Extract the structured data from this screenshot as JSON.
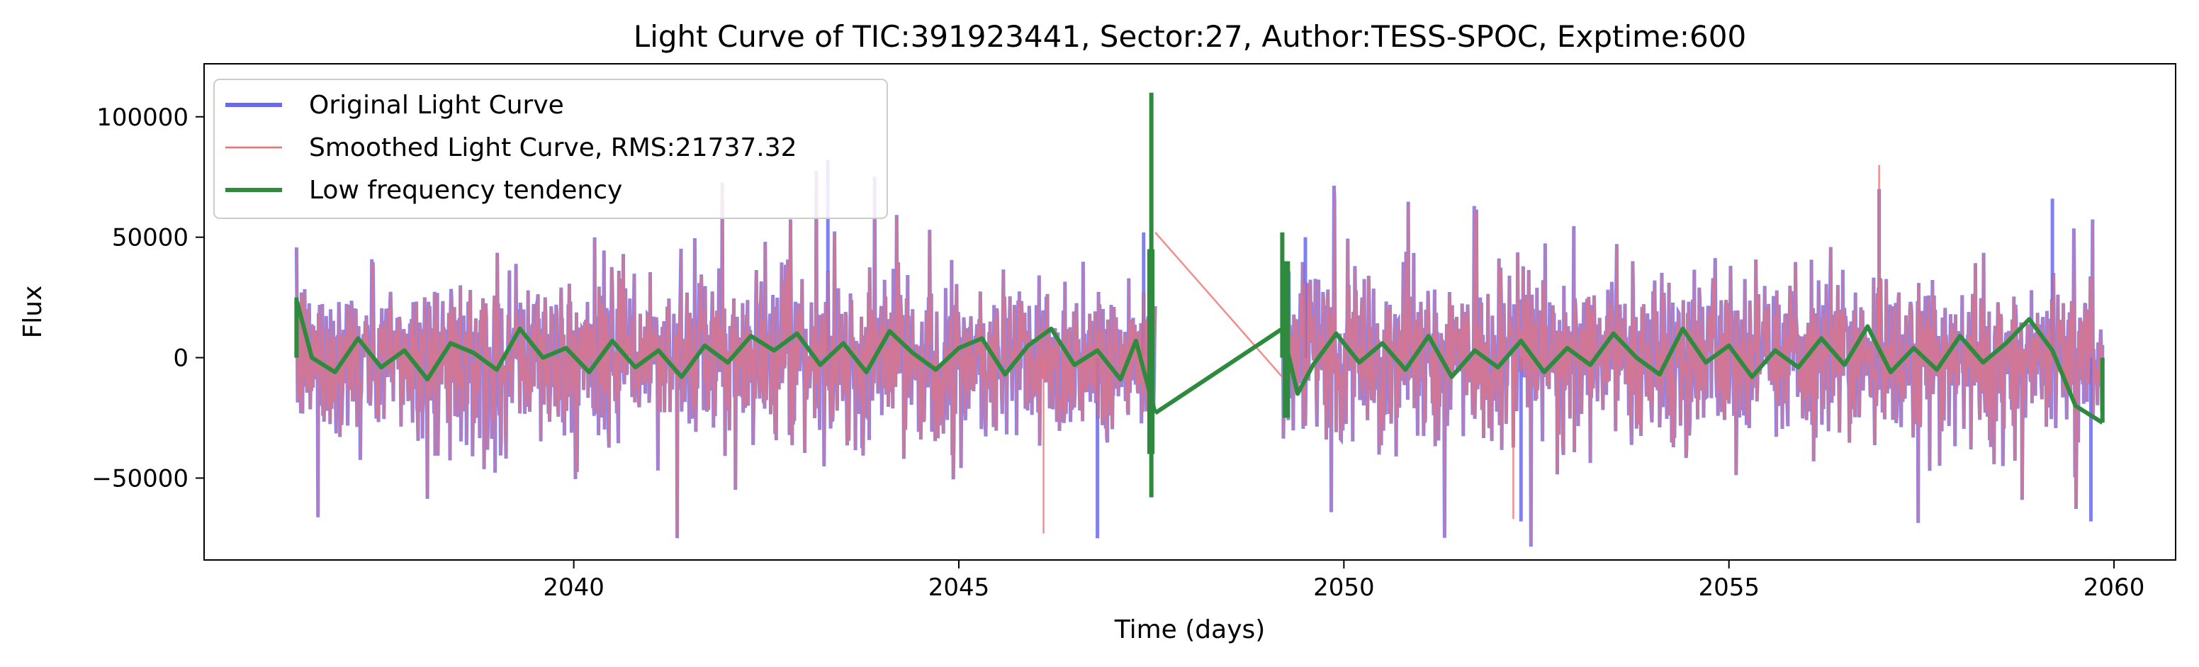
{
  "chart_data": {
    "type": "line",
    "title": "Light Curve of TIC:391923441, Sector:27, Author:TESS-SPOC, Exptime:600",
    "xlabel": "Time (days)",
    "ylabel": "Flux",
    "xlim": [
      2035.2,
      2060.8
    ],
    "ylim": [
      -84000,
      122000
    ],
    "x_ticks": [
      2040,
      2045,
      2050,
      2055,
      2060
    ],
    "x_tick_labels": [
      "2040",
      "2045",
      "2050",
      "2055",
      "2060"
    ],
    "y_ticks": [
      -50000,
      0,
      50000,
      100000
    ],
    "y_tick_labels": [
      "−50000",
      "0",
      "50000",
      "100000"
    ],
    "grid": false,
    "legend_position": "top-left",
    "segments": [
      [
        2036.4,
        2047.55
      ],
      [
        2049.2,
        2059.85
      ]
    ],
    "series": [
      {
        "name": "Original Light Curve",
        "color": "#6a6af0",
        "noise_amplitude": 22000,
        "spikes": [
          [
            2043.3,
            82000
          ],
          [
            2047.4,
            52000
          ],
          [
            2049.5,
            50000
          ],
          [
            2056.95,
            70000
          ],
          [
            2059.2,
            66000
          ],
          [
            2046.8,
            -75000
          ],
          [
            2052.3,
            -68000
          ],
          [
            2059.7,
            -68000
          ]
        ]
      },
      {
        "name": "Smoothed Light Curve, RMS:21737.32",
        "color": "#f07070",
        "noise_amplitude": 21737.32,
        "spikes": [
          [
            2056.95,
            80000
          ],
          [
            2046.1,
            -73000
          ],
          [
            2052.2,
            -67000
          ]
        ]
      },
      {
        "name": "Low frequency tendency",
        "color": "#2e8b3e",
        "gap_line": [
          [
            2047.55,
            -23000
          ],
          [
            2049.2,
            12000
          ]
        ],
        "spikes": [
          [
            2047.5,
            110000
          ],
          [
            2047.5,
            -58000
          ],
          [
            2049.2,
            52000
          ],
          [
            2036.4,
            25000
          ],
          [
            2059.85,
            -27000
          ]
        ],
        "points": [
          [
            2036.4,
            24000
          ],
          [
            2036.6,
            0
          ],
          [
            2036.9,
            -6000
          ],
          [
            2037.2,
            8000
          ],
          [
            2037.5,
            -4000
          ],
          [
            2037.8,
            3000
          ],
          [
            2038.1,
            -9000
          ],
          [
            2038.4,
            6000
          ],
          [
            2038.7,
            2000
          ],
          [
            2039.0,
            -5000
          ],
          [
            2039.3,
            12000
          ],
          [
            2039.6,
            0
          ],
          [
            2039.9,
            4000
          ],
          [
            2040.2,
            -6000
          ],
          [
            2040.5,
            7000
          ],
          [
            2040.8,
            -4000
          ],
          [
            2041.1,
            3000
          ],
          [
            2041.4,
            -8000
          ],
          [
            2041.7,
            5000
          ],
          [
            2042.0,
            -2000
          ],
          [
            2042.3,
            9000
          ],
          [
            2042.6,
            3000
          ],
          [
            2042.9,
            10000
          ],
          [
            2043.2,
            -3000
          ],
          [
            2043.5,
            6000
          ],
          [
            2043.8,
            -6000
          ],
          [
            2044.1,
            11000
          ],
          [
            2044.4,
            2000
          ],
          [
            2044.7,
            -5000
          ],
          [
            2045.0,
            4000
          ],
          [
            2045.3,
            8000
          ],
          [
            2045.6,
            -7000
          ],
          [
            2045.9,
            5000
          ],
          [
            2046.2,
            12000
          ],
          [
            2046.5,
            -3000
          ],
          [
            2046.8,
            3000
          ],
          [
            2047.1,
            -9000
          ],
          [
            2047.3,
            7000
          ],
          [
            2047.55,
            -23000
          ],
          [
            2049.2,
            12000
          ],
          [
            2049.4,
            -15000
          ],
          [
            2049.6,
            -3000
          ],
          [
            2049.9,
            10000
          ],
          [
            2050.2,
            -2000
          ],
          [
            2050.5,
            6000
          ],
          [
            2050.8,
            -5000
          ],
          [
            2051.1,
            9000
          ],
          [
            2051.4,
            -8000
          ],
          [
            2051.7,
            3000
          ],
          [
            2052.0,
            -4000
          ],
          [
            2052.3,
            7000
          ],
          [
            2052.6,
            -6000
          ],
          [
            2052.9,
            4000
          ],
          [
            2053.2,
            -3000
          ],
          [
            2053.5,
            10000
          ],
          [
            2053.8,
            0
          ],
          [
            2054.1,
            -7000
          ],
          [
            2054.4,
            12000
          ],
          [
            2054.7,
            -2000
          ],
          [
            2055.0,
            5000
          ],
          [
            2055.3,
            -8000
          ],
          [
            2055.6,
            3000
          ],
          [
            2055.9,
            -4000
          ],
          [
            2056.2,
            8000
          ],
          [
            2056.5,
            -3000
          ],
          [
            2056.8,
            13000
          ],
          [
            2057.1,
            -6000
          ],
          [
            2057.4,
            4000
          ],
          [
            2057.7,
            -5000
          ],
          [
            2058.0,
            9000
          ],
          [
            2058.3,
            -2000
          ],
          [
            2058.6,
            6000
          ],
          [
            2058.9,
            16000
          ],
          [
            2059.2,
            3000
          ],
          [
            2059.5,
            -20000
          ],
          [
            2059.85,
            -27000
          ]
        ]
      }
    ]
  }
}
